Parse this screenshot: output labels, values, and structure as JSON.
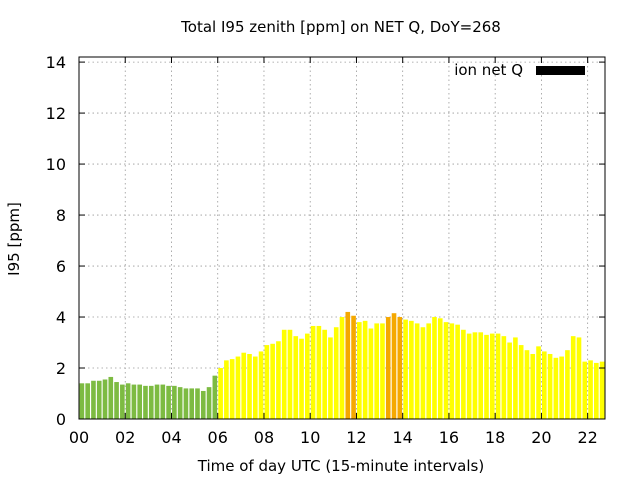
{
  "chart_data": {
    "type": "bar",
    "title": "Total I95 zenith [ppm] on NET Q, DoY=268",
    "xlabel": "Time of day UTC (15-minute intervals)",
    "ylabel": "I95 [ppm]",
    "legend": {
      "label": "ion net Q",
      "color": "#000000",
      "placement": "top-right"
    },
    "xlim": [
      0,
      22.75
    ],
    "ylim": [
      0,
      14.2
    ],
    "x_ticks": [
      {
        "value": 0,
        "label": "00"
      },
      {
        "value": 2,
        "label": "02"
      },
      {
        "value": 4,
        "label": "04"
      },
      {
        "value": 6,
        "label": "06"
      },
      {
        "value": 8,
        "label": "08"
      },
      {
        "value": 10,
        "label": "10"
      },
      {
        "value": 12,
        "label": "12"
      },
      {
        "value": 14,
        "label": "14"
      },
      {
        "value": 16,
        "label": "16"
      },
      {
        "value": 18,
        "label": "18"
      },
      {
        "value": 20,
        "label": "20"
      },
      {
        "value": 22,
        "label": "22"
      }
    ],
    "y_ticks": [
      {
        "value": 0,
        "label": "0"
      },
      {
        "value": 2,
        "label": "2"
      },
      {
        "value": 4,
        "label": "4"
      },
      {
        "value": 6,
        "label": "6"
      },
      {
        "value": 8,
        "label": "8"
      },
      {
        "value": 10,
        "label": "10"
      },
      {
        "value": 12,
        "label": "12"
      },
      {
        "value": 14,
        "label": "14"
      }
    ],
    "grid": true,
    "bar_width_hours": 0.2,
    "colors": {
      "green": "#7dbb42",
      "yellow": "#ffff00",
      "orange": "#f5a800"
    },
    "bars": [
      {
        "x": 0.125,
        "y": 1.4,
        "c": "green"
      },
      {
        "x": 0.375,
        "y": 1.4,
        "c": "green"
      },
      {
        "x": 0.625,
        "y": 1.5,
        "c": "green"
      },
      {
        "x": 0.875,
        "y": 1.5,
        "c": "green"
      },
      {
        "x": 1.125,
        "y": 1.55,
        "c": "green"
      },
      {
        "x": 1.375,
        "y": 1.65,
        "c": "green"
      },
      {
        "x": 1.625,
        "y": 1.45,
        "c": "green"
      },
      {
        "x": 1.875,
        "y": 1.35,
        "c": "green"
      },
      {
        "x": 2.125,
        "y": 1.4,
        "c": "green"
      },
      {
        "x": 2.375,
        "y": 1.35,
        "c": "green"
      },
      {
        "x": 2.625,
        "y": 1.35,
        "c": "green"
      },
      {
        "x": 2.875,
        "y": 1.3,
        "c": "green"
      },
      {
        "x": 3.125,
        "y": 1.3,
        "c": "green"
      },
      {
        "x": 3.375,
        "y": 1.35,
        "c": "green"
      },
      {
        "x": 3.625,
        "y": 1.35,
        "c": "green"
      },
      {
        "x": 3.875,
        "y": 1.3,
        "c": "green"
      },
      {
        "x": 4.125,
        "y": 1.3,
        "c": "green"
      },
      {
        "x": 4.375,
        "y": 1.25,
        "c": "green"
      },
      {
        "x": 4.625,
        "y": 1.2,
        "c": "green"
      },
      {
        "x": 4.875,
        "y": 1.2,
        "c": "green"
      },
      {
        "x": 5.125,
        "y": 1.2,
        "c": "green"
      },
      {
        "x": 5.375,
        "y": 1.1,
        "c": "green"
      },
      {
        "x": 5.625,
        "y": 1.25,
        "c": "green"
      },
      {
        "x": 5.875,
        "y": 1.7,
        "c": "green"
      },
      {
        "x": 6.125,
        "y": 2.0,
        "c": "yellow"
      },
      {
        "x": 6.375,
        "y": 2.3,
        "c": "yellow"
      },
      {
        "x": 6.625,
        "y": 2.35,
        "c": "yellow"
      },
      {
        "x": 6.875,
        "y": 2.45,
        "c": "yellow"
      },
      {
        "x": 7.125,
        "y": 2.6,
        "c": "yellow"
      },
      {
        "x": 7.375,
        "y": 2.55,
        "c": "yellow"
      },
      {
        "x": 7.625,
        "y": 2.45,
        "c": "yellow"
      },
      {
        "x": 7.875,
        "y": 2.65,
        "c": "yellow"
      },
      {
        "x": 8.125,
        "y": 2.9,
        "c": "yellow"
      },
      {
        "x": 8.375,
        "y": 2.95,
        "c": "yellow"
      },
      {
        "x": 8.625,
        "y": 3.05,
        "c": "yellow"
      },
      {
        "x": 8.875,
        "y": 3.5,
        "c": "yellow"
      },
      {
        "x": 9.125,
        "y": 3.5,
        "c": "yellow"
      },
      {
        "x": 9.375,
        "y": 3.25,
        "c": "yellow"
      },
      {
        "x": 9.625,
        "y": 3.15,
        "c": "yellow"
      },
      {
        "x": 9.875,
        "y": 3.35,
        "c": "yellow"
      },
      {
        "x": 10.125,
        "y": 3.65,
        "c": "yellow"
      },
      {
        "x": 10.375,
        "y": 3.65,
        "c": "yellow"
      },
      {
        "x": 10.625,
        "y": 3.5,
        "c": "yellow"
      },
      {
        "x": 10.875,
        "y": 3.2,
        "c": "yellow"
      },
      {
        "x": 11.125,
        "y": 3.6,
        "c": "yellow"
      },
      {
        "x": 11.375,
        "y": 4.0,
        "c": "yellow"
      },
      {
        "x": 11.625,
        "y": 4.2,
        "c": "orange"
      },
      {
        "x": 11.875,
        "y": 4.05,
        "c": "orange"
      },
      {
        "x": 12.125,
        "y": 3.8,
        "c": "yellow"
      },
      {
        "x": 12.375,
        "y": 3.85,
        "c": "yellow"
      },
      {
        "x": 12.625,
        "y": 3.55,
        "c": "yellow"
      },
      {
        "x": 12.875,
        "y": 3.75,
        "c": "yellow"
      },
      {
        "x": 13.125,
        "y": 3.75,
        "c": "yellow"
      },
      {
        "x": 13.375,
        "y": 4.0,
        "c": "orange"
      },
      {
        "x": 13.625,
        "y": 4.15,
        "c": "orange"
      },
      {
        "x": 13.875,
        "y": 4.0,
        "c": "orange"
      },
      {
        "x": 14.125,
        "y": 3.9,
        "c": "yellow"
      },
      {
        "x": 14.375,
        "y": 3.85,
        "c": "yellow"
      },
      {
        "x": 14.625,
        "y": 3.75,
        "c": "yellow"
      },
      {
        "x": 14.875,
        "y": 3.6,
        "c": "yellow"
      },
      {
        "x": 15.125,
        "y": 3.75,
        "c": "yellow"
      },
      {
        "x": 15.375,
        "y": 4.0,
        "c": "yellow"
      },
      {
        "x": 15.625,
        "y": 3.95,
        "c": "yellow"
      },
      {
        "x": 15.875,
        "y": 3.8,
        "c": "yellow"
      },
      {
        "x": 16.125,
        "y": 3.75,
        "c": "yellow"
      },
      {
        "x": 16.375,
        "y": 3.7,
        "c": "yellow"
      },
      {
        "x": 16.625,
        "y": 3.5,
        "c": "yellow"
      },
      {
        "x": 16.875,
        "y": 3.35,
        "c": "yellow"
      },
      {
        "x": 17.125,
        "y": 3.4,
        "c": "yellow"
      },
      {
        "x": 17.375,
        "y": 3.4,
        "c": "yellow"
      },
      {
        "x": 17.625,
        "y": 3.3,
        "c": "yellow"
      },
      {
        "x": 17.875,
        "y": 3.35,
        "c": "yellow"
      },
      {
        "x": 18.125,
        "y": 3.35,
        "c": "yellow"
      },
      {
        "x": 18.375,
        "y": 3.25,
        "c": "yellow"
      },
      {
        "x": 18.625,
        "y": 3.0,
        "c": "yellow"
      },
      {
        "x": 18.875,
        "y": 3.2,
        "c": "yellow"
      },
      {
        "x": 19.125,
        "y": 2.9,
        "c": "yellow"
      },
      {
        "x": 19.375,
        "y": 2.7,
        "c": "yellow"
      },
      {
        "x": 19.625,
        "y": 2.55,
        "c": "yellow"
      },
      {
        "x": 19.875,
        "y": 2.85,
        "c": "yellow"
      },
      {
        "x": 20.125,
        "y": 2.65,
        "c": "yellow"
      },
      {
        "x": 20.375,
        "y": 2.55,
        "c": "yellow"
      },
      {
        "x": 20.625,
        "y": 2.4,
        "c": "yellow"
      },
      {
        "x": 20.875,
        "y": 2.45,
        "c": "yellow"
      },
      {
        "x": 21.125,
        "y": 2.7,
        "c": "yellow"
      },
      {
        "x": 21.375,
        "y": 3.25,
        "c": "yellow"
      },
      {
        "x": 21.625,
        "y": 3.2,
        "c": "yellow"
      },
      {
        "x": 21.875,
        "y": 2.25,
        "c": "yellow"
      },
      {
        "x": 22.125,
        "y": 2.3,
        "c": "yellow"
      },
      {
        "x": 22.375,
        "y": 2.2,
        "c": "yellow"
      },
      {
        "x": 22.625,
        "y": 2.25,
        "c": "yellow"
      }
    ]
  }
}
